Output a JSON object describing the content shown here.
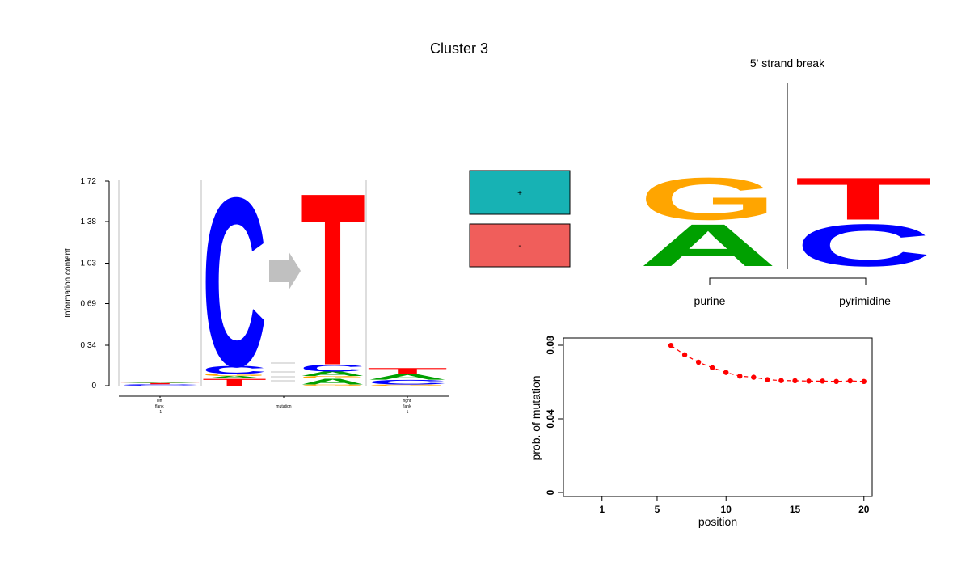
{
  "title": "Cluster 3",
  "colors": {
    "A": "#00a000",
    "C": "#0000ff",
    "G": "#ffa500",
    "T": "#ff0000",
    "plus_box": "#17b2b4",
    "minus_box": "#f05e5b",
    "arrow": "#c0c0c0",
    "grid": "#bdbdbd"
  },
  "strand": {
    "plus_label": "+",
    "minus_label": "-",
    "plus_value": 0.5,
    "minus_value": 0.5
  },
  "strand_break": {
    "title": "5' strand break",
    "left_group": "purine",
    "right_group": "pyrimidine"
  },
  "chart_data": [
    {
      "type": "sequence-logo",
      "ylabel": "Information content",
      "ylim": [
        0,
        1.72
      ],
      "yticks": [
        "0",
        "0.34",
        "0.69",
        "1.03",
        "1.38",
        "1.72"
      ],
      "columns": [
        {
          "name": "left flank",
          "label_lines": [
            "left",
            "flank",
            "-1"
          ],
          "stack": [
            [
              "C",
              0.012
            ],
            [
              "T",
              0.01
            ],
            [
              "A",
              0.006
            ],
            [
              "G",
              0.004
            ]
          ]
        },
        {
          "name": "mutation from",
          "label_lines": [],
          "stack": [
            [
              "T",
              0.06
            ],
            [
              "A",
              0.02
            ],
            [
              "G",
              0.02
            ],
            [
              "C",
              0.07
            ],
            [
              "C",
              1.46
            ]
          ]
        },
        {
          "name": "mutation to",
          "label_lines": [
            "mutation"
          ],
          "stack": [
            [
              "G",
              0.01
            ],
            [
              "A",
              0.05
            ],
            [
              "G",
              0.02
            ],
            [
              "A",
              0.04
            ],
            [
              "C",
              0.06
            ],
            [
              "T",
              1.49
            ]
          ]
        },
        {
          "name": "right flank",
          "label_lines": [
            "right",
            "flank",
            "1"
          ],
          "stack": [
            [
              "G",
              0.01
            ],
            [
              "C",
              0.04
            ],
            [
              "A",
              0.05
            ],
            [
              "T",
              0.05
            ]
          ]
        }
      ]
    },
    {
      "type": "sequence-logo",
      "name": "5' strand break",
      "columns": [
        {
          "group": "purine",
          "stack": [
            [
              "A",
              0.5
            ],
            [
              "G",
              0.5
            ]
          ]
        },
        {
          "group": "pyrimidine",
          "stack": [
            [
              "C",
              0.5
            ],
            [
              "T",
              0.5
            ]
          ]
        }
      ]
    },
    {
      "type": "scatter",
      "xlabel": "position",
      "ylabel": "prob. of mutation",
      "xlim": [
        -1.8,
        20.6
      ],
      "ylim": [
        0,
        0.08
      ],
      "xticks": [
        1,
        5,
        10,
        15,
        20
      ],
      "yticks": [
        "0",
        "0.04",
        "0.08"
      ],
      "x": [
        6,
        7,
        8,
        9,
        10,
        11,
        12,
        13,
        14,
        15,
        16,
        17,
        18,
        19,
        20
      ],
      "y": [
        0.0799,
        0.0748,
        0.0708,
        0.0678,
        0.0652,
        0.0632,
        0.0626,
        0.0613,
        0.0608,
        0.0607,
        0.0605,
        0.0605,
        0.0603,
        0.0606,
        0.0603
      ]
    }
  ]
}
